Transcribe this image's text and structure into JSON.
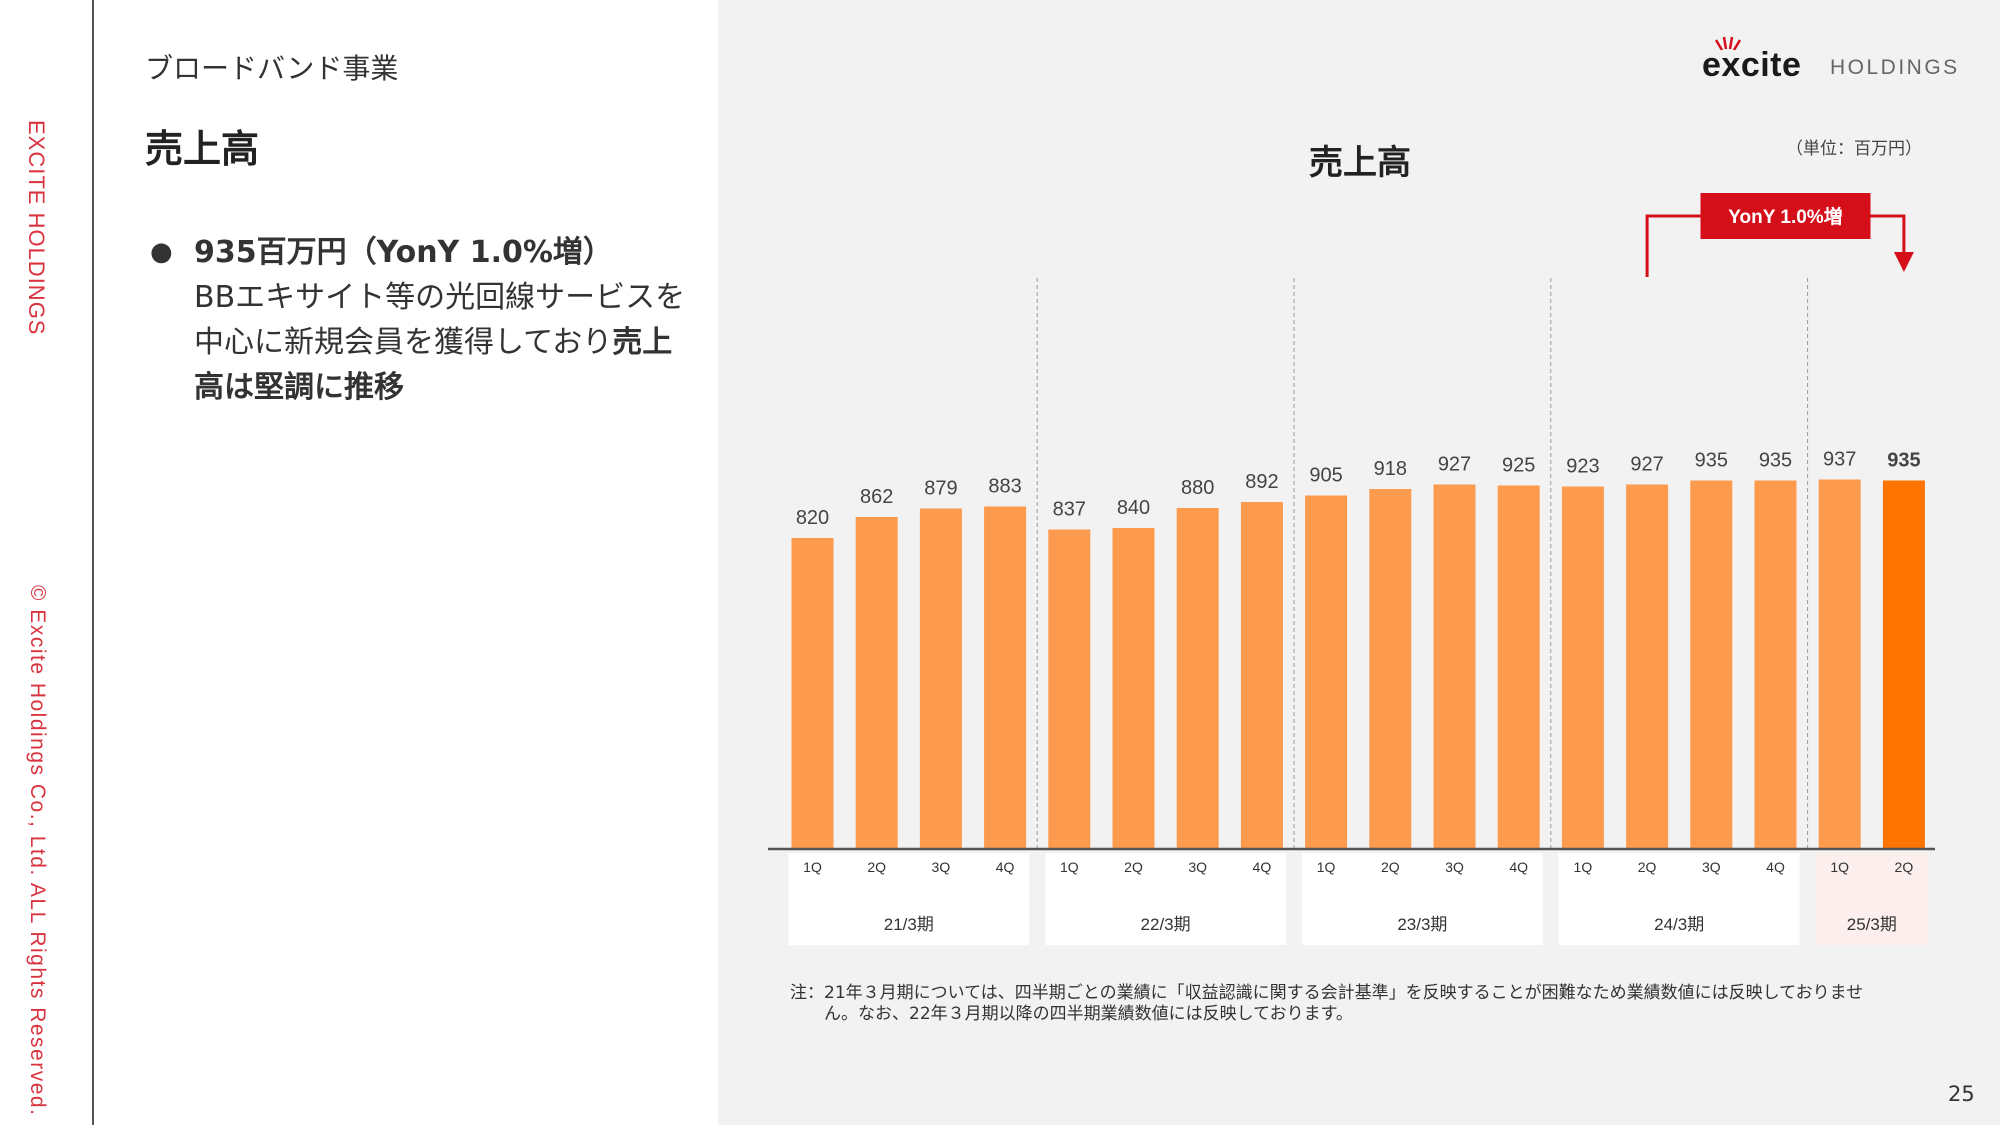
{
  "sidebar": {
    "company_vertical": "EXCITE HOLDINGS",
    "copyright_vertical": "© Excite Holdings Co., Ltd. ALL Rights Reserved."
  },
  "header": {
    "section": "ブロードバンド事業",
    "title": "売上高"
  },
  "bullet": {
    "headline": "935百万円（YonY 1.0%増）",
    "body_1": "BBエキサイト等の光回線サービスを中心に新規会員を獲得しており",
    "body_bold": "売上高は堅調に推移"
  },
  "logo": {
    "brand": "excite",
    "suffix": "HOLDINGS"
  },
  "chart_data": {
    "type": "bar",
    "title": "売上高",
    "unit": "（単位：百万円）",
    "annotation": "YonY 1.0%増",
    "highlight_index": 17,
    "ylim": [
      0,
      960
    ],
    "colors": {
      "bar": "#fc9a4e",
      "highlight": "#ff7300",
      "annotation": "#d50f1a"
    },
    "groups": [
      {
        "label": "21/3期",
        "quarters": [
          "1Q",
          "2Q",
          "3Q",
          "4Q"
        ],
        "values": [
          820,
          862,
          879,
          883
        ]
      },
      {
        "label": "22/3期",
        "quarters": [
          "1Q",
          "2Q",
          "3Q",
          "4Q"
        ],
        "values": [
          837,
          840,
          880,
          892
        ]
      },
      {
        "label": "23/3期",
        "quarters": [
          "1Q",
          "2Q",
          "3Q",
          "4Q"
        ],
        "values": [
          905,
          918,
          927,
          925
        ]
      },
      {
        "label": "24/3期",
        "quarters": [
          "1Q",
          "2Q",
          "3Q",
          "4Q"
        ],
        "values": [
          923,
          927,
          935,
          935
        ]
      },
      {
        "label": "25/3期",
        "quarters": [
          "1Q",
          "2Q"
        ],
        "values": [
          937,
          935
        ]
      }
    ]
  },
  "footnote": {
    "line1": "注：21年３月期については、四半期ごとの業績に「収益認識に関する会計基準」を反映することが困難なため業績数値には反映しておりませ",
    "line2": "ん。なお、22年３月期以降の四半期業績数値には反映しております。"
  },
  "page_number": "25"
}
